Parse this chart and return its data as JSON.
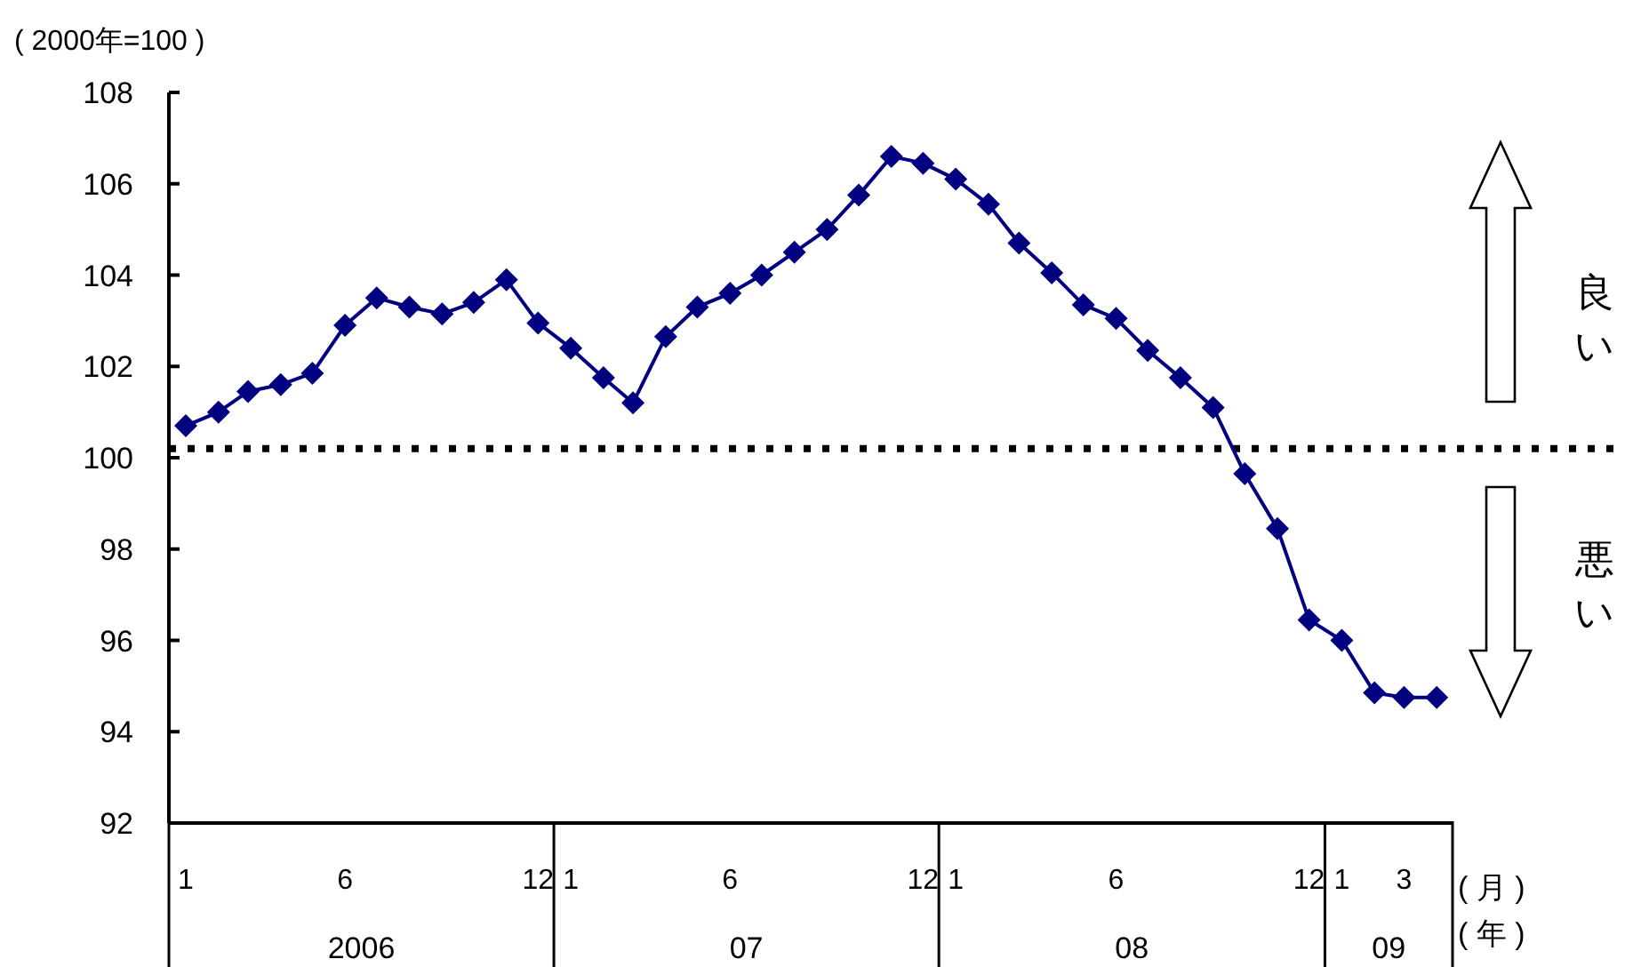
{
  "chart_data": {
    "type": "line",
    "ylabel": "( 2000年=100 )",
    "x": [
      "2006-01",
      "2006-02",
      "2006-03",
      "2006-04",
      "2006-05",
      "2006-06",
      "2006-07",
      "2006-08",
      "2006-09",
      "2006-10",
      "2006-11",
      "2006-12",
      "2007-01",
      "2007-02",
      "2007-03",
      "2007-04",
      "2007-05",
      "2007-06",
      "2007-07",
      "2007-08",
      "2007-09",
      "2007-10",
      "2007-11",
      "2007-12",
      "2008-01",
      "2008-02",
      "2008-03",
      "2008-04",
      "2008-05",
      "2008-06",
      "2008-07",
      "2008-08",
      "2008-09",
      "2008-10",
      "2008-11",
      "2008-12",
      "2009-01",
      "2009-02",
      "2009-03",
      "2009-04"
    ],
    "series": [
      {
        "color": "#000080",
        "values": [
          100.7,
          101.0,
          101.45,
          101.6,
          101.85,
          102.9,
          103.5,
          103.3,
          103.15,
          103.4,
          103.9,
          102.95,
          102.4,
          101.75,
          101.2,
          102.65,
          103.3,
          103.6,
          104.0,
          104.5,
          105.0,
          105.75,
          106.6,
          106.45,
          106.1,
          105.55,
          104.7,
          104.05,
          103.35,
          103.05,
          102.35,
          101.75,
          101.1,
          99.65,
          98.45,
          96.45,
          96.0,
          94.85,
          94.75,
          94.75
        ]
      }
    ],
    "marker": "diamond",
    "line_style": "solid",
    "grid": false,
    "ylim": [
      92,
      108
    ],
    "yticks": [
      92,
      94,
      96,
      98,
      100,
      102,
      104,
      106,
      108
    ],
    "xlim": [
      "2005-12-16",
      "2009-04-16"
    ],
    "xticks": [
      {
        "value": "2005-12-16",
        "label": null
      },
      {
        "value": "2006-01",
        "label": "1"
      },
      {
        "value": "2006-06",
        "label": "6"
      },
      {
        "value": "2006-12",
        "label": "12"
      },
      {
        "value": "2006-12-16",
        "label": null
      },
      {
        "value": "2007-01",
        "label": "1"
      },
      {
        "value": "2007-06",
        "label": "6"
      },
      {
        "value": "2007-12",
        "label": "12"
      },
      {
        "value": "2007-12-16",
        "label": null
      },
      {
        "value": "2008-01",
        "label": "1"
      },
      {
        "value": "2008-06",
        "label": "6"
      },
      {
        "value": "2008-12",
        "label": "12"
      },
      {
        "value": "2008-12-16",
        "label": null
      },
      {
        "value": "2009-01",
        "label": "1"
      },
      {
        "value": "2009-03",
        "label": "3"
      },
      {
        "value": "2009-04-16",
        "label": null
      }
    ],
    "ref_lines": [
      {
        "axis": "y",
        "value": 100.2,
        "color": "#000000",
        "line_style": "dotted"
      }
    ],
    "annotations": [
      "良い",
      "悪い",
      "( 月 )",
      "( 年 )",
      "2006",
      "07",
      "08",
      "09"
    ]
  }
}
